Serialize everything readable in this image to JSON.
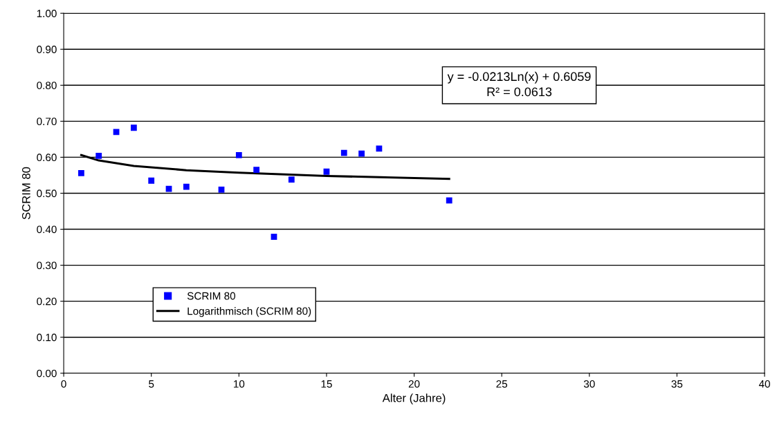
{
  "chart_data": {
    "type": "scatter",
    "xlabel": "Alter (Jahre)",
    "ylabel": "SCRIM 80",
    "annotations": [
      "y = -0.0213Ln(x) + 0.6059\nR² = 0.0613"
    ],
    "series": [
      {
        "name": "SCRIM 80",
        "color": "#0000ff",
        "marker": "square",
        "x": [
          1,
          2,
          3,
          4,
          5,
          6,
          7,
          9,
          10,
          11,
          12,
          13,
          15,
          16,
          17,
          18,
          22
        ],
        "values": [
          0.556,
          0.604,
          0.67,
          0.682,
          0.535,
          0.512,
          0.518,
          0.51,
          0.606,
          0.565,
          0.379,
          0.538,
          0.56,
          0.612,
          0.61,
          0.624,
          0.48
        ]
      },
      {
        "name": "Logarithmisch (SCRIM 80)",
        "type": "line",
        "color": "#000000",
        "marker": "none",
        "line_style": "solid",
        "x": [
          1,
          2,
          4,
          7,
          10,
          15,
          22
        ],
        "values": [
          0.606,
          0.591,
          0.576,
          0.564,
          0.557,
          0.548,
          0.54
        ]
      }
    ],
    "xlim": [
      0,
      40
    ],
    "xticks": [
      0,
      5,
      10,
      15,
      20,
      25,
      30,
      35,
      40
    ],
    "ylim": [
      0,
      1
    ],
    "yticks": [
      {
        "value": 0,
        "label": "0.00"
      },
      {
        "value": 0.1,
        "label": "0.10"
      },
      {
        "value": 0.2,
        "label": "0.20"
      },
      {
        "value": 0.3,
        "label": "0.30"
      },
      {
        "value": 0.4,
        "label": "0.40"
      },
      {
        "value": 0.5,
        "label": "0.50"
      },
      {
        "value": 0.6,
        "label": "0.60"
      },
      {
        "value": 0.7,
        "label": "0.70"
      },
      {
        "value": 0.8,
        "label": "0.80"
      },
      {
        "value": 0.9,
        "label": "0.90"
      },
      {
        "value": 1,
        "label": "1.00"
      }
    ],
    "grid": "y",
    "legend": "bottom left"
  }
}
